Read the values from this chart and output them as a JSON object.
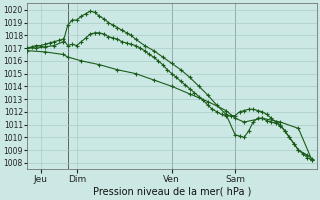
{
  "background_color": "#cce8e4",
  "grid_color": "#aaccc8",
  "line_color": "#1a5c1a",
  "xlabel": "Pression niveau de la mer( hPa )",
  "ylim": [
    1007.5,
    1020.5
  ],
  "yticks": [
    1008,
    1009,
    1010,
    1011,
    1012,
    1013,
    1014,
    1015,
    1016,
    1017,
    1018,
    1019,
    1020
  ],
  "xlim": [
    0,
    64
  ],
  "xtick_positions": [
    3,
    11,
    32,
    46
  ],
  "xtick_labels": [
    "Jeu",
    "Dim",
    "Ven",
    "Sam"
  ],
  "vlines_x": [
    9,
    32,
    46
  ],
  "line1_x": [
    0,
    1,
    2,
    3,
    4,
    5,
    6,
    7,
    8,
    9,
    10,
    11,
    12,
    13,
    14,
    15,
    16,
    17,
    18,
    19,
    20,
    21,
    22,
    23,
    24,
    25,
    26,
    27,
    28,
    29,
    30,
    31,
    32,
    33,
    34,
    35,
    36,
    37,
    38,
    39,
    40,
    41,
    42,
    43,
    44,
    45,
    46,
    47,
    48,
    49,
    50,
    51,
    52,
    53,
    54,
    55,
    56,
    57,
    58,
    59,
    60,
    61,
    62,
    63
  ],
  "line1_y": [
    1017.0,
    1017.1,
    1017.2,
    1017.2,
    1017.3,
    1017.4,
    1017.5,
    1017.6,
    1017.7,
    1017.2,
    1017.3,
    1017.2,
    1017.5,
    1017.8,
    1018.1,
    1018.2,
    1018.2,
    1018.1,
    1017.9,
    1017.8,
    1017.7,
    1017.5,
    1017.4,
    1017.3,
    1017.2,
    1017.0,
    1016.8,
    1016.5,
    1016.3,
    1016.0,
    1015.7,
    1015.3,
    1015.0,
    1014.7,
    1014.4,
    1014.1,
    1013.8,
    1013.5,
    1013.2,
    1012.9,
    1012.5,
    1012.2,
    1012.0,
    1011.8,
    1011.7,
    1011.7,
    1011.7,
    1012.0,
    1012.1,
    1012.2,
    1012.2,
    1012.1,
    1012.0,
    1011.8,
    1011.5,
    1011.2,
    1010.9,
    1010.5,
    1010.0,
    1009.5,
    1009.0,
    1008.7,
    1008.4,
    1008.2
  ],
  "line2_x": [
    0,
    2,
    4,
    6,
    8,
    9,
    10,
    11,
    12,
    13,
    14,
    15,
    16,
    17,
    18,
    19,
    20,
    21,
    22,
    23,
    24,
    26,
    28,
    30,
    32,
    34,
    36,
    38,
    40,
    42,
    44,
    46,
    47,
    48,
    49,
    50,
    51,
    52,
    53,
    54,
    55,
    56,
    57,
    58,
    59,
    60,
    62,
    63
  ],
  "line2_y": [
    1017.0,
    1017.0,
    1017.1,
    1017.2,
    1017.5,
    1018.8,
    1019.2,
    1019.2,
    1019.5,
    1019.7,
    1019.9,
    1019.8,
    1019.5,
    1019.3,
    1019.0,
    1018.8,
    1018.6,
    1018.4,
    1018.2,
    1018.0,
    1017.7,
    1017.2,
    1016.8,
    1016.3,
    1015.8,
    1015.3,
    1014.7,
    1014.0,
    1013.3,
    1012.5,
    1011.8,
    1010.2,
    1010.1,
    1010.0,
    1010.5,
    1011.2,
    1011.5,
    1011.5,
    1011.3,
    1011.2,
    1011.1,
    1011.0,
    1010.5,
    1010.0,
    1009.5,
    1009.0,
    1008.6,
    1008.3
  ],
  "line3_x": [
    0,
    4,
    8,
    9,
    12,
    16,
    20,
    24,
    28,
    32,
    36,
    40,
    44,
    46,
    48,
    52,
    56,
    60,
    63
  ],
  "line3_y": [
    1016.8,
    1016.7,
    1016.5,
    1016.3,
    1016.0,
    1015.7,
    1015.3,
    1015.0,
    1014.5,
    1014.0,
    1013.4,
    1012.8,
    1012.1,
    1011.5,
    1011.2,
    1011.5,
    1011.2,
    1010.7,
    1008.2
  ],
  "figsize": [
    3.2,
    2.0
  ],
  "dpi": 100
}
